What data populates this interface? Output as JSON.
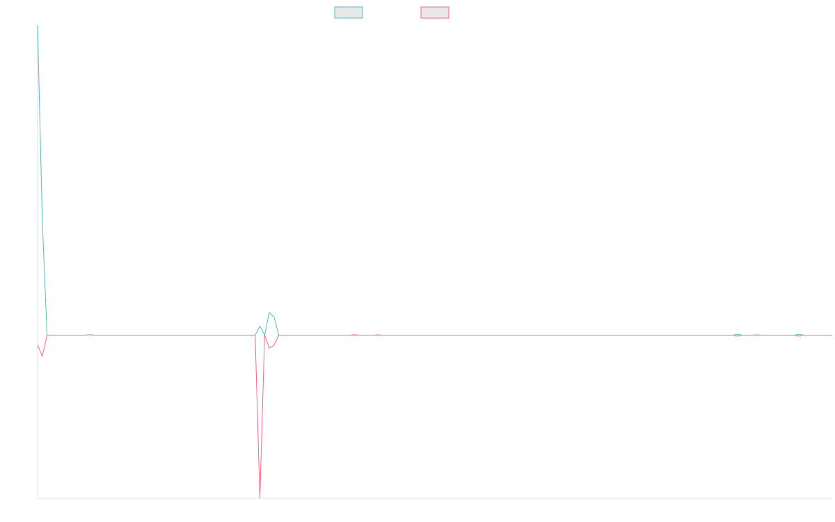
{
  "chart_data": {
    "type": "line",
    "title": "",
    "xlabel": "",
    "ylabel": "",
    "grid": false,
    "legend": {
      "position": "top-center",
      "swatch_fill": "#e8e8e8"
    },
    "ylim": [
      -1,
      1.9
    ],
    "series": [
      {
        "color": "#4bc0c0",
        "points": [
          [
            0,
            1.9
          ],
          [
            1,
            0.7
          ],
          [
            2,
            0.0
          ],
          [
            3,
            0.0
          ],
          [
            10,
            0.0
          ],
          [
            11,
            0.003
          ],
          [
            12,
            0.0
          ],
          [
            46,
            0.0
          ],
          [
            47,
            0.055
          ],
          [
            48,
            0.0
          ],
          [
            49,
            0.14
          ],
          [
            50,
            0.11
          ],
          [
            51,
            0.0
          ],
          [
            56,
            0.0
          ],
          [
            66,
            0.0
          ],
          [
            68,
            0.0
          ],
          [
            118,
            0.0
          ],
          [
            147,
            0.0
          ],
          [
            148,
            0.006
          ],
          [
            149,
            0.0
          ],
          [
            151,
            0.0
          ],
          [
            158,
            0.0
          ],
          [
            160,
            0.0
          ],
          [
            161,
            0.006
          ],
          [
            162,
            0.0
          ],
          [
            168,
            0.0
          ]
        ]
      },
      {
        "color": "#ff6384",
        "points": [
          [
            0,
            -0.06
          ],
          [
            1,
            -0.13
          ],
          [
            2,
            0.0
          ],
          [
            3,
            0.0
          ],
          [
            10,
            0.0
          ],
          [
            11,
            0.002
          ],
          [
            12,
            0.0
          ],
          [
            46,
            0.0
          ],
          [
            47,
            -1.0
          ],
          [
            48,
            0.0
          ],
          [
            49,
            -0.08
          ],
          [
            50,
            -0.06
          ],
          [
            51,
            0.0
          ],
          [
            56,
            0.0
          ],
          [
            66,
            0.0
          ],
          [
            67,
            0.003
          ],
          [
            68,
            0.0
          ],
          [
            71,
            0.0
          ],
          [
            72,
            0.002
          ],
          [
            73,
            0.0
          ],
          [
            118,
            0.0
          ],
          [
            147,
            0.0
          ],
          [
            148,
            -0.006
          ],
          [
            149,
            0.0
          ],
          [
            151,
            0.0
          ],
          [
            152,
            0.002
          ],
          [
            153,
            0.0
          ],
          [
            158,
            0.0
          ],
          [
            160,
            0.0
          ],
          [
            161,
            -0.006
          ],
          [
            162,
            0.0
          ],
          [
            168,
            0.0
          ]
        ]
      }
    ]
  }
}
